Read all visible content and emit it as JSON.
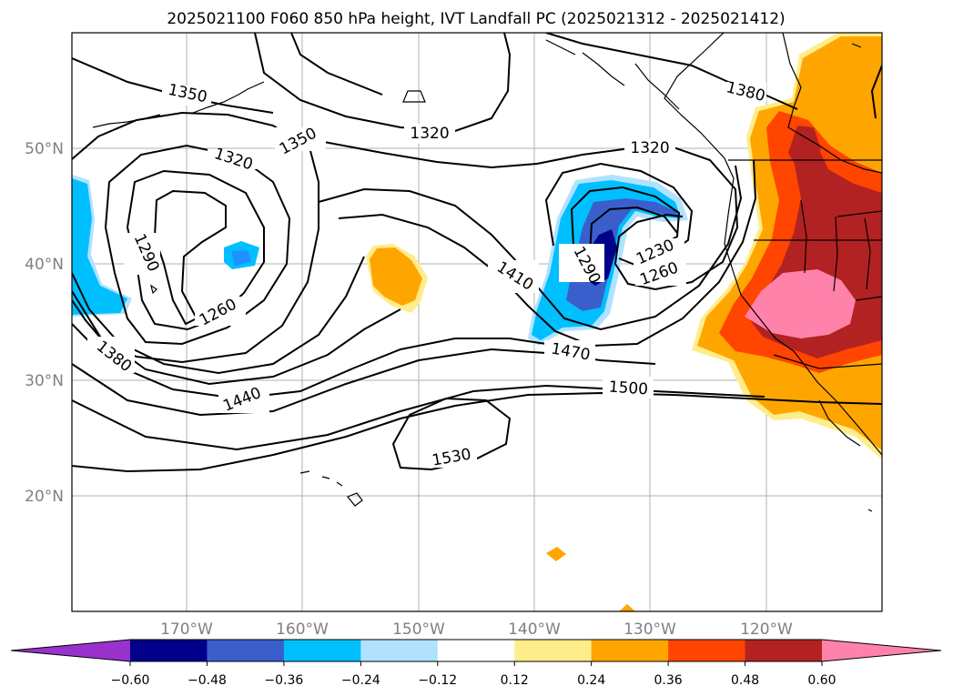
{
  "title": "2025021100 F060 850 hPa height, IVT Landfall PC (2025021312 - 2025021412)",
  "lat_labels": [
    "50°N",
    "40°N",
    "30°N",
    "20°N"
  ],
  "lon_labels": [
    "170°W",
    "160°W",
    "150°W",
    "140°W",
    "130°W",
    "120°W"
  ],
  "contour_labels": [
    "1350",
    "1320",
    "1350",
    "1320",
    "1320",
    "1380",
    "1290",
    "1260",
    "1230",
    "1260",
    "1290",
    "1410",
    "1380",
    "1440",
    "1470",
    "1500",
    "1530"
  ],
  "colorbar": {
    "ticks": [
      "−0.60",
      "−0.48",
      "−0.36",
      "−0.24",
      "−0.12",
      "0.12",
      "0.24",
      "0.36",
      "0.48",
      "0.60"
    ],
    "colors": [
      "#9932cc",
      "#00008b",
      "#3a5fcd",
      "#00bfff",
      "#b0e2ff",
      "#ffffff",
      "#ffec8b",
      "#ffa500",
      "#ff4500",
      "#b22222",
      "#ff82ab"
    ]
  },
  "chart_data": {
    "type": "map",
    "variable": "850 hPa height",
    "shading": "IVT Landfall PC",
    "contour_values": [
      1230,
      1260,
      1290,
      1320,
      1350,
      1380,
      1410,
      1440,
      1470,
      1500,
      1530
    ],
    "lat_range": [
      10,
      60
    ],
    "lon_range": [
      -180,
      -110
    ],
    "colorbar_bounds": [
      -0.6,
      -0.48,
      -0.36,
      -0.24,
      -0.12,
      0.12,
      0.24,
      0.36,
      0.48,
      0.6
    ]
  }
}
